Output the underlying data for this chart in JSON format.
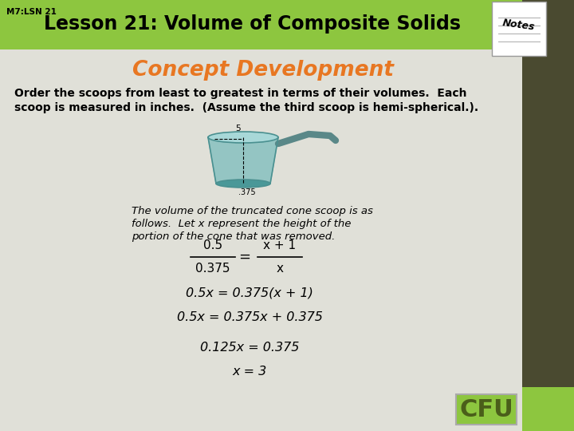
{
  "header_bg": "#8dc63f",
  "header_text": "Lesson 21: Volume of Composite Solids",
  "header_label": "M7:LSN 21",
  "body_bg": "#e0e0d8",
  "title_text": "Concept Development",
  "title_color": "#e87722",
  "body_text_line1": "Order the scoops from least to greatest in terms of their volumes.  Each",
  "body_text_line2": "scoop is measured in inches.  (Assume the third scoop is hemi-spherical.).",
  "italic_text_line1": "The volume of the truncated cone scoop is as",
  "italic_text_line2": "follows.  Let x represent the height of the",
  "italic_text_line3": "portion of the cone that was removed.",
  "eq1_num": "0.5",
  "eq1_den": "0.375",
  "eq1_rhs_num": "x + 1",
  "eq1_rhs_den": "x",
  "eq2": "0.5x = 0.375(x + 1)",
  "eq3": "0.5x = 0.375x + 0.375",
  "eq4": "0.125x = 0.375",
  "eq5": "x = 3",
  "cfu_text": "CFU",
  "cfu_bg": "#8dc63f",
  "cfu_text_color": "#4a5e1a",
  "right_bar_color": "#4a4a30",
  "right_accent_color": "#8dc63f",
  "pot_color": "#7bbcbc",
  "pot_edge_color": "#4a9090",
  "handle_color": "#5a8888"
}
